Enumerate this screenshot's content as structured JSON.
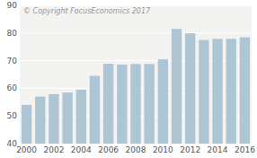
{
  "chart_data": {
    "type": "bar",
    "categories": [
      "2000",
      null,
      "2002",
      null,
      "2004",
      null,
      "2006",
      null,
      "2008",
      null,
      "2010",
      null,
      "2012",
      null,
      "2014",
      null,
      "2016"
    ],
    "values": [
      54.0,
      57.0,
      57.9,
      58.5,
      59.5,
      64.5,
      68.9,
      68.6,
      68.8,
      68.8,
      70.5,
      81.5,
      79.9,
      77.5,
      77.9,
      77.9,
      78.5
    ],
    "color": "#aec6d4",
    "ylim": [
      40,
      90
    ],
    "yticks": [
      40,
      50,
      60,
      70,
      80,
      90
    ],
    "grid": true,
    "annotations": [
      "© Copyright FocusEconomics  2017"
    ]
  }
}
